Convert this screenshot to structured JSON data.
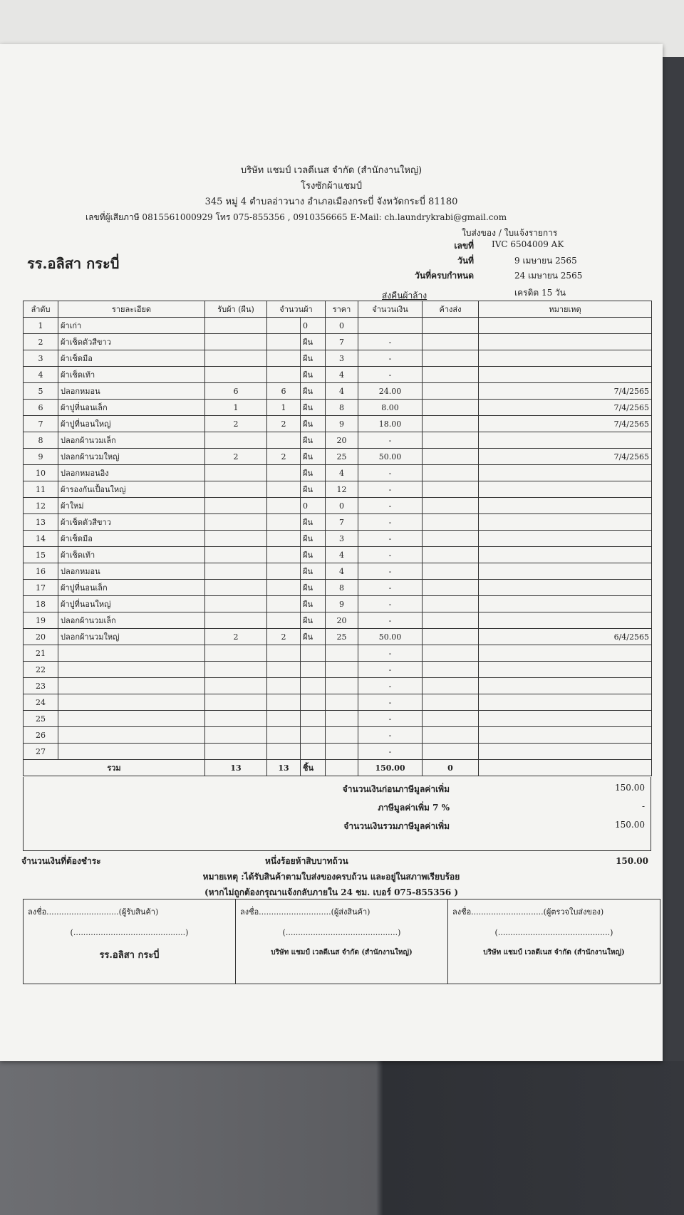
{
  "header": {
    "company": "บริษัท แชมป์ เวลดีเนส จำกัด (สำนักงานใหญ่)",
    "shop": "โรงซักผ้าแชมป์",
    "address": "345 หมู่ 4 ตำบลอ่าวนาง อำเภอเมืองกระบี่ จังหวัดกระบี่ 81180",
    "tax_contact": "เลขที่ผู้เสียภาษี 0815561000929 โทร 075-855356 , 0910356665 E-Mail: ch.laundrykrabi@gmail.com",
    "doc_title": "ใบส่งของ / ใบแจ้งรายการ"
  },
  "customer": "รร.อลิสา กระบี่",
  "doc_info": [
    {
      "label": "เลขที่",
      "value": "IVC 6504009 AK"
    },
    {
      "label": "วันที่",
      "value": "9 เมษายน 2565"
    },
    {
      "label": "วันที่ครบกำหนด",
      "value": "24 เมษายน 2565"
    }
  ],
  "credit": "เครดิต 15 วัน",
  "table": {
    "caption": "ส่งคืนผ้าล้าง",
    "columns": [
      "ลำดับ",
      "รายละเอียด",
      "รับผ้า (ผืน)",
      "จำนวนผ้า",
      "ราคา",
      "จำนวนเงิน",
      "ค้างส่ง",
      "หมายเหตุ"
    ],
    "rows": [
      [
        "1",
        "ผ้าเก่า",
        null,
        null,
        "0",
        "0",
        null,
        null,
        null
      ],
      [
        "2",
        "ผ้าเช็ดตัวสีขาว",
        null,
        null,
        "ผืน",
        "7",
        "-",
        null,
        null
      ],
      [
        "3",
        "ผ้าเช็ดมือ",
        null,
        null,
        "ผืน",
        "3",
        "-",
        null,
        null
      ],
      [
        "4",
        "ผ้าเช็ดเท้า",
        null,
        null,
        "ผืน",
        "4",
        "-",
        null,
        null
      ],
      [
        "5",
        "ปลอกหมอน",
        "6",
        "6",
        "ผืน",
        "4",
        "24.00",
        null,
        "7/4/2565"
      ],
      [
        "6",
        "ผ้าปูที่นอนเล็ก",
        "1",
        "1",
        "ผืน",
        "8",
        "8.00",
        null,
        "7/4/2565"
      ],
      [
        "7",
        "ผ้าปูที่นอนใหญ่",
        "2",
        "2",
        "ผืน",
        "9",
        "18.00",
        null,
        "7/4/2565"
      ],
      [
        "8",
        "ปลอกผ้านวมเล็ก",
        null,
        null,
        "ผืน",
        "20",
        "-",
        null,
        null
      ],
      [
        "9",
        "ปลอกผ้านวมใหญ่",
        "2",
        "2",
        "ผืน",
        "25",
        "50.00",
        null,
        "7/4/2565"
      ],
      [
        "10",
        "ปลอกหมอนอิง",
        null,
        null,
        "ผืน",
        "4",
        "-",
        null,
        null
      ],
      [
        "11",
        "ผ้ารองกันเปื้อนใหญ่",
        null,
        null,
        "ผืน",
        "12",
        "-",
        null,
        null
      ],
      [
        "12",
        "ผ้าใหม่",
        null,
        null,
        "0",
        "0",
        "-",
        null,
        null
      ],
      [
        "13",
        "ผ้าเช็ดตัวสีขาว",
        null,
        null,
        "ผืน",
        "7",
        "-",
        null,
        null
      ],
      [
        "14",
        "ผ้าเช็ดมือ",
        null,
        null,
        "ผืน",
        "3",
        "-",
        null,
        null
      ],
      [
        "15",
        "ผ้าเช็ดเท้า",
        null,
        null,
        "ผืน",
        "4",
        "-",
        null,
        null
      ],
      [
        "16",
        "ปลอกหมอน",
        null,
        null,
        "ผืน",
        "4",
        "-",
        null,
        null
      ],
      [
        "17",
        "ผ้าปูที่นอนเล็ก",
        null,
        null,
        "ผืน",
        "8",
        "-",
        null,
        null
      ],
      [
        "18",
        "ผ้าปูที่นอนใหญ่",
        null,
        null,
        "ผืน",
        "9",
        "-",
        null,
        null
      ],
      [
        "19",
        "ปลอกผ้านวมเล็ก",
        null,
        null,
        "ผืน",
        "20",
        "-",
        null,
        null
      ],
      [
        "20",
        "ปลอกผ้านวมใหญ่",
        "2",
        "2",
        "ผืน",
        "25",
        "50.00",
        null,
        "6/4/2565"
      ],
      [
        "21",
        null,
        null,
        null,
        null,
        null,
        "-",
        null,
        null
      ],
      [
        "22",
        null,
        null,
        null,
        null,
        null,
        "-",
        null,
        null
      ],
      [
        "23",
        null,
        null,
        null,
        null,
        null,
        "-",
        null,
        null
      ],
      [
        "24",
        null,
        null,
        null,
        null,
        null,
        "-",
        null,
        null
      ],
      [
        "25",
        null,
        null,
        null,
        null,
        null,
        "-",
        null,
        null
      ],
      [
        "26",
        null,
        null,
        null,
        null,
        null,
        "-",
        null,
        null
      ],
      [
        "27",
        null,
        null,
        null,
        null,
        null,
        "-",
        null,
        null
      ]
    ],
    "total": {
      "label": "รวม",
      "cells": [
        "13",
        "13",
        "ชิ้น",
        null,
        "150.00",
        "0",
        null
      ]
    }
  },
  "summary": [
    {
      "label": "จำนวนเงินก่อนภาษีมูลค่าเพิ่ม",
      "value": "150.00"
    },
    {
      "label": "ภาษีมูลค่าเพิ่ม 7 %",
      "value": "-"
    },
    {
      "label": "จำนวนเงินรวมภาษีมูลค่าเพิ่ม",
      "value": "150.00"
    }
  ],
  "payment": {
    "label": "จำนวนเงินที่ต้องชำระ",
    "words": "หนึ่งร้อยห้าสิบบาทถ้วน",
    "amount": "150.00"
  },
  "note": [
    "หมายเหตุ :ได้รับสินค้าตามใบส่งของครบถ้วน และอยู่ในสภาพเรียบร้อย",
    "(หากไม่ถูกต้องกรุณาแจ้งกลับภายใน 24 ชม. เบอร์ 075-855356 )"
  ],
  "signatures": [
    {
      "sign": "ลงชื่อ.............................(ผู้รับสินค้า)",
      "name_line": "(.............................................)",
      "org": "รร.อลิสา กระบี่"
    },
    {
      "sign": "ลงชื่อ.............................(ผู้ส่งสินค้า)",
      "name_line": "(.............................................)",
      "org": "บริษัท แชมป์ เวลดีเนส จำกัด (สำนักงานใหญ่)"
    },
    {
      "sign": "ลงชื่อ.............................(ผู้ตรวจใบส่งของ)",
      "name_line": "(.............................................)",
      "org": "บริษัท แชมป์ เวลดีเนส จำกัด (สำนักงานใหญ่)"
    }
  ]
}
